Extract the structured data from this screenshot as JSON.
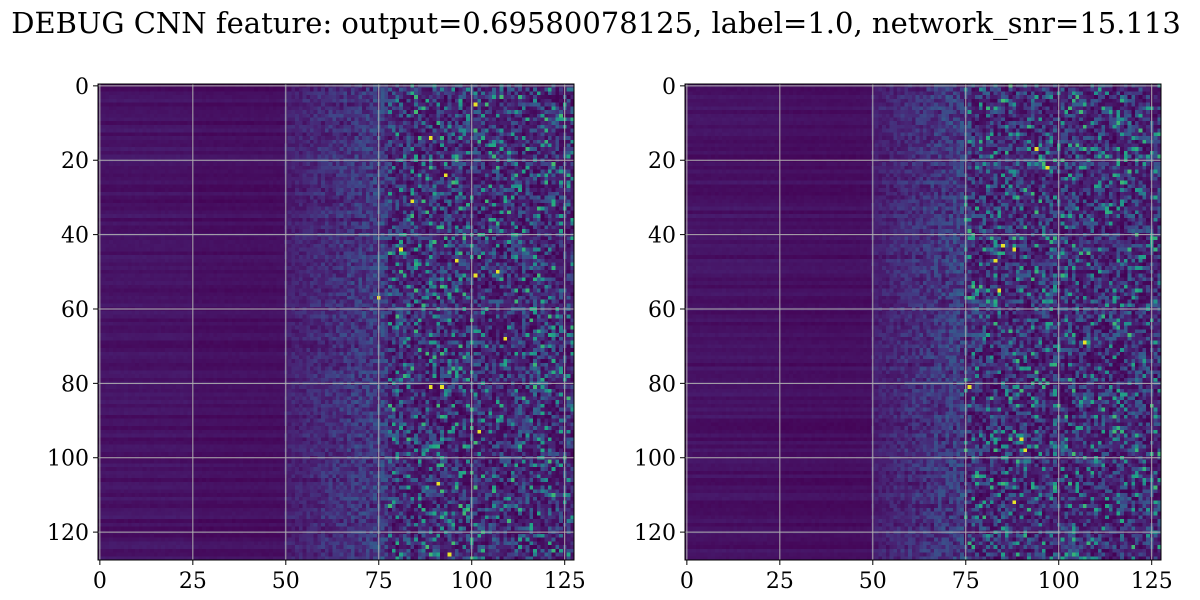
{
  "figure": {
    "title": "DEBUG CNN feature: output=0.69580078125, label=1.0, network_snr=15.113"
  },
  "chart_data": [
    {
      "type": "heatmap",
      "title": "",
      "xlabel": "",
      "ylabel": "",
      "rows": 128,
      "cols": 128,
      "xlim": [
        -0.5,
        127.5
      ],
      "ylim": [
        127.5,
        -0.5
      ],
      "y_axis_inverted": true,
      "xticks": [
        0,
        25,
        50,
        75,
        100,
        125
      ],
      "yticks": [
        0,
        20,
        40,
        60,
        80,
        100,
        120
      ],
      "grid": true,
      "colormap": "viridis",
      "value_range": [
        0,
        1
      ],
      "description_of_values": {
        "low_columns_0_50": 0.1,
        "transition_columns_50_80": 0.2,
        "high_columns_80_127": 0.3,
        "peak": 1.0
      },
      "peak_cells": [
        [
          5,
          101
        ],
        [
          14,
          89
        ],
        [
          24,
          93
        ],
        [
          31,
          84
        ],
        [
          44,
          81
        ],
        [
          47,
          96
        ],
        [
          51,
          101
        ],
        [
          50,
          107
        ],
        [
          57,
          75
        ],
        [
          68,
          109
        ],
        [
          81,
          89
        ],
        [
          81,
          92
        ],
        [
          93,
          102
        ],
        [
          107,
          91
        ],
        [
          126,
          94
        ]
      ],
      "transition_column": 50,
      "spread_column": 78
    },
    {
      "type": "heatmap",
      "title": "",
      "xlabel": "",
      "ylabel": "",
      "rows": 128,
      "cols": 128,
      "xlim": [
        -0.5,
        127.5
      ],
      "ylim": [
        127.5,
        -0.5
      ],
      "y_axis_inverted": true,
      "xticks": [
        0,
        25,
        50,
        75,
        100,
        125
      ],
      "yticks": [
        0,
        20,
        40,
        60,
        80,
        100,
        120
      ],
      "grid": true,
      "colormap": "viridis",
      "value_range": [
        0,
        1
      ],
      "peak_cells": [
        [
          17,
          94
        ],
        [
          22,
          97
        ],
        [
          43,
          85
        ],
        [
          44,
          88
        ],
        [
          47,
          83
        ],
        [
          55,
          84
        ],
        [
          69,
          107
        ],
        [
          81,
          76
        ],
        [
          95,
          90
        ],
        [
          98,
          91
        ],
        [
          112,
          88
        ]
      ],
      "transition_column": 50,
      "spread_column": 75
    }
  ],
  "colors": {
    "grid": "#b0b0b0",
    "viridis_low": "#440154",
    "viridis_mid": "#21918c",
    "viridis_high": "#fde725"
  }
}
